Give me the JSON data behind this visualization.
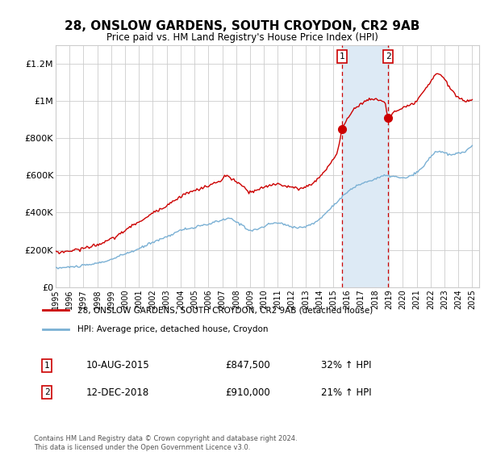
{
  "title": "28, ONSLOW GARDENS, SOUTH CROYDON, CR2 9AB",
  "subtitle": "Price paid vs. HM Land Registry's House Price Index (HPI)",
  "ylabel_ticks": [
    "£0",
    "£200K",
    "£400K",
    "£600K",
    "£800K",
    "£1M",
    "£1.2M"
  ],
  "ytick_values": [
    0,
    200000,
    400000,
    600000,
    800000,
    1000000,
    1200000
  ],
  "ylim": [
    0,
    1300000
  ],
  "xlim_start": 1995.0,
  "xlim_end": 2025.5,
  "legend_line1": "28, ONSLOW GARDENS, SOUTH CROYDON, CR2 9AB (detached house)",
  "legend_line2": "HPI: Average price, detached house, Croydon",
  "sale1_date": "10-AUG-2015",
  "sale1_price": "£847,500",
  "sale1_info": "32% ↑ HPI",
  "sale1_year": 2015.61,
  "sale1_value": 847500,
  "sale2_date": "12-DEC-2018",
  "sale2_price": "£910,000",
  "sale2_info": "21% ↑ HPI",
  "sale2_year": 2018.95,
  "sale2_value": 910000,
  "footnote1": "Contains HM Land Registry data © Crown copyright and database right 2024.",
  "footnote2": "This data is licensed under the Open Government Licence v3.0.",
  "line_color_red": "#cc0000",
  "line_color_blue": "#7ab0d4",
  "shade_color": "#ddeaf5",
  "grid_color": "#cccccc",
  "background_color": "#ffffff"
}
